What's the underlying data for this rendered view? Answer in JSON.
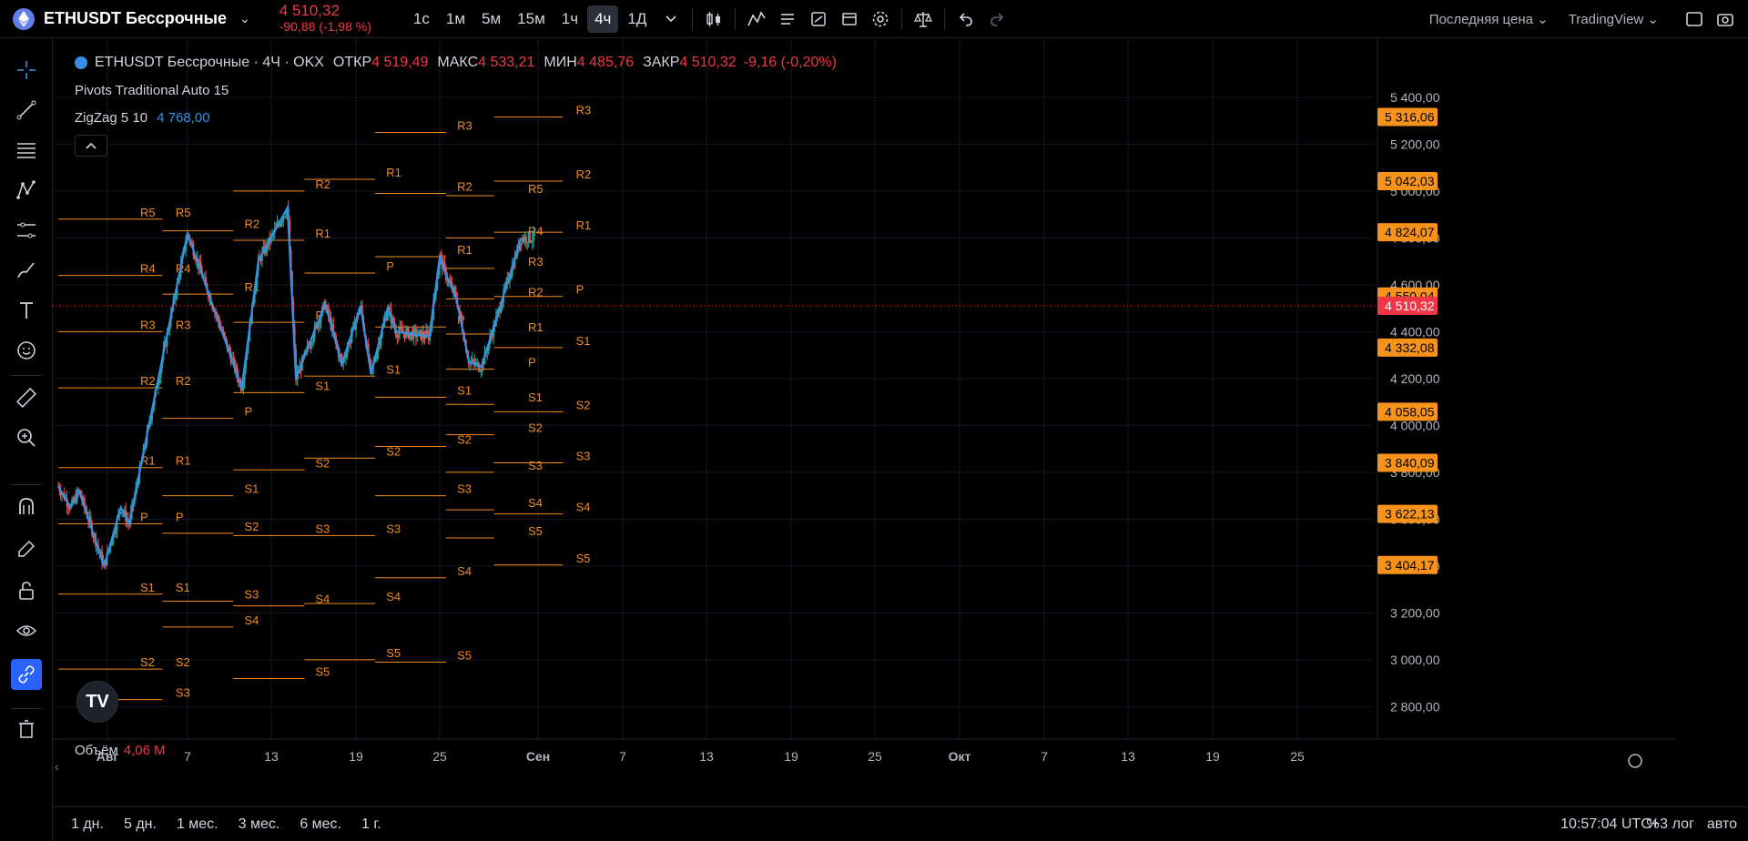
{
  "header": {
    "symbol": "ETHUSDT Бессрочные",
    "last_price": "4 510,32",
    "change": "-90,88 (-1,98 %)",
    "timeframes": [
      "1с",
      "1м",
      "5м",
      "15м",
      "1ч",
      "4ч",
      "1Д"
    ],
    "active_timeframe": "4ч",
    "price_type": "Последняя цена",
    "brand": "TradingView"
  },
  "legend": {
    "title": "ETHUSDT Бессрочные · 4Ч · OKX",
    "open_label": "ОТКР",
    "open": "4 519,49",
    "high_label": "МАКС",
    "high": "4 533,21",
    "low_label": "МИН",
    "low": "4 485,76",
    "close_label": "ЗАКР",
    "close": "4 510,32",
    "change": "-9,16 (-0,20%)"
  },
  "indicators": {
    "pivots": "Pivots Traditional Auto 15",
    "zigzag_name": "ZigZag 5 10",
    "zigzag_value": "4 768,00",
    "volume_name": "Объём",
    "volume_value": "4,06 M"
  },
  "colors": {
    "up": "#26a69a",
    "down": "#ef5350",
    "zigzag": "#3a8ee6",
    "pivot": "#f28b1f",
    "last_price": "#f23645"
  },
  "chart_data": {
    "type": "candlestick",
    "price_scale_labels": [
      "5 400,00",
      "5 200,00",
      "5 000,00",
      "4 800,00",
      "4 600,00",
      "4 400,00",
      "4 200,00",
      "4 000,00",
      "3 800,00",
      "3 600,00",
      "3 400,00",
      "3 200,00",
      "3 000,00",
      "2 800,00"
    ],
    "price_markers": [
      {
        "price": 5316.06,
        "label": "5 316,06",
        "color": "#f7931a"
      },
      {
        "price": 5042.03,
        "label": "5 042,03",
        "color": "#f7931a"
      },
      {
        "price": 4824.07,
        "label": "4 824,07",
        "color": "#f7931a"
      },
      {
        "price": 4550.04,
        "label": "4 550,04",
        "color": "#f7931a"
      },
      {
        "price": 4510.32,
        "label": "4 510,32",
        "color": "#f23645"
      },
      {
        "price": 4332.08,
        "label": "4 332,08",
        "color": "#f7931a"
      },
      {
        "price": 4058.05,
        "label": "4 058,05",
        "color": "#f7931a"
      },
      {
        "price": 3840.09,
        "label": "3 840,09",
        "color": "#f7931a"
      },
      {
        "price": 3622.13,
        "label": "3 622,13",
        "color": "#f7931a"
      },
      {
        "price": 3404.17,
        "label": "3 404,17",
        "color": "#f7931a"
      }
    ],
    "time_labels": [
      "Авг",
      "7",
      "13",
      "19",
      "25",
      "Сен",
      "7",
      "13",
      "19",
      "25",
      "Окт",
      "7",
      "13",
      "19",
      "25"
    ],
    "bold_time_labels": [
      "Авг",
      "Сен",
      "Окт"
    ],
    "zigzag_points": [
      [
        0,
        3740
      ],
      [
        0.6,
        3650
      ],
      [
        1.0,
        3720
      ],
      [
        2.2,
        3400
      ],
      [
        3.0,
        3650
      ],
      [
        3.4,
        3580
      ],
      [
        6.2,
        4820
      ],
      [
        8.8,
        4160
      ],
      [
        9.6,
        4700
      ],
      [
        11.0,
        4930
      ],
      [
        11.4,
        4200
      ],
      [
        12.8,
        4520
      ],
      [
        13.6,
        4260
      ],
      [
        14.5,
        4510
      ],
      [
        15.0,
        4220
      ],
      [
        15.8,
        4500
      ],
      [
        16.2,
        4400
      ],
      [
        17.8,
        4380
      ],
      [
        18.3,
        4720
      ],
      [
        18.6,
        4640
      ],
      [
        19.1,
        4540
      ],
      [
        19.7,
        4270
      ],
      [
        20.3,
        4250
      ],
      [
        22.2,
        4800
      ]
    ],
    "pivot_levels": [
      {
        "x_start": 0,
        "x_end": 1.7,
        "levels": [
          [
            "R5",
            4880
          ],
          [
            "R4",
            4640
          ],
          [
            "R3",
            4400
          ],
          [
            "R2",
            4160
          ],
          [
            "R1",
            3820
          ],
          [
            "P",
            3580
          ],
          [
            "S1",
            3280
          ],
          [
            "S2",
            2960
          ]
        ]
      },
      {
        "x_start": 1.7,
        "x_end": 5.0,
        "levels": [
          [
            "R5",
            4880
          ],
          [
            "R4",
            4640
          ],
          [
            "R3",
            4400
          ],
          [
            "R2",
            4160
          ],
          [
            "R1",
            3820
          ],
          [
            "P",
            3580
          ],
          [
            "S1",
            3280
          ],
          [
            "S2",
            2960
          ],
          [
            "S3",
            2830
          ]
        ]
      },
      {
        "x_start": 5.0,
        "x_end": 8.4,
        "levels": [
          [
            "R2",
            4830
          ],
          [
            "R1",
            4560
          ],
          [
            "P",
            4030
          ],
          [
            "S1",
            3700
          ],
          [
            "S2",
            3540
          ],
          [
            "S3",
            3250
          ],
          [
            "S4",
            3140
          ]
        ]
      },
      {
        "x_start": 8.4,
        "x_end": 11.8,
        "levels": [
          [
            "R2",
            5000
          ],
          [
            "R1",
            4790
          ],
          [
            "P",
            4440
          ],
          [
            "S1",
            4140
          ],
          [
            "S2",
            3810
          ],
          [
            "S3",
            3530
          ],
          [
            "S4",
            3230
          ],
          [
            "S5",
            2920
          ]
        ]
      },
      {
        "x_start": 11.8,
        "x_end": 15.2,
        "levels": [
          [
            "R1",
            5050
          ],
          [
            "P",
            4650
          ],
          [
            "S1",
            4210
          ],
          [
            "S2",
            3860
          ],
          [
            "S3",
            3530
          ],
          [
            "S4",
            3240
          ],
          [
            "S5",
            3000
          ]
        ]
      },
      {
        "x_start": 15.2,
        "x_end": 18.6,
        "levels": [
          [
            "R3",
            5250
          ],
          [
            "R2",
            4990
          ],
          [
            "R1",
            4720
          ],
          [
            "P",
            4420
          ],
          [
            "S1",
            4120
          ],
          [
            "S2",
            3910
          ],
          [
            "S3",
            3700
          ],
          [
            "S4",
            3350
          ],
          [
            "S5",
            2990
          ]
        ]
      },
      {
        "x_start": 18.6,
        "x_end": 20.9,
        "levels": [
          [
            "R5",
            4980
          ],
          [
            "R4",
            4800
          ],
          [
            "R3",
            4670
          ],
          [
            "R2",
            4540
          ],
          [
            "R1",
            4390
          ],
          [
            "P",
            4240
          ],
          [
            "S1",
            4090
          ],
          [
            "S2",
            3960
          ],
          [
            "S3",
            3800
          ],
          [
            "S4",
            3640
          ],
          [
            "S5",
            3520
          ]
        ]
      },
      {
        "x_start": 20.9,
        "x_end": 24.2,
        "levels": [
          [
            "R3",
            5316.06
          ],
          [
            "R2",
            5042.03
          ],
          [
            "R1",
            4824.07
          ],
          [
            "P",
            4550.04
          ],
          [
            "S1",
            4332.08
          ],
          [
            "S2",
            4058.05
          ],
          [
            "S3",
            3840.09
          ],
          [
            "S4",
            3622.13
          ],
          [
            "S5",
            3404.17
          ]
        ]
      }
    ]
  },
  "bottom": {
    "ranges": [
      "1 дн.",
      "5 дн.",
      "1 мес.",
      "3 мес.",
      "6 мес.",
      "1 г."
    ],
    "clock": "10:57:04 UTC+3",
    "percent": "%",
    "log": "лог",
    "auto": "авто"
  }
}
